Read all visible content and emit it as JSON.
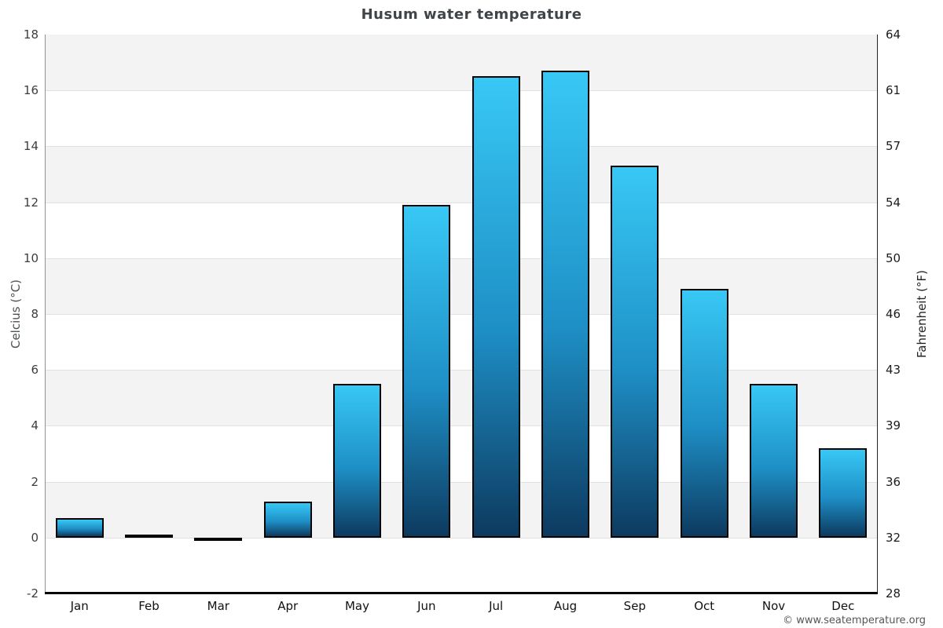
{
  "title": "Husum water temperature",
  "watermark": "© www.seatemperature.org",
  "chart_data": {
    "type": "bar",
    "title": "Husum water temperature",
    "categories": [
      "Jan",
      "Feb",
      "Mar",
      "Apr",
      "May",
      "Jun",
      "Jul",
      "Aug",
      "Sep",
      "Oct",
      "Nov",
      "Dec"
    ],
    "values": [
      0.7,
      0.1,
      -0.1,
      1.3,
      5.5,
      11.9,
      16.5,
      16.7,
      13.3,
      8.9,
      5.5,
      3.2
    ],
    "xlabel": "",
    "ylabel_left": "Celcius (°C)",
    "ylabel_right": "Fahrenheit (°F)",
    "ylim_celsius": [
      -2,
      18
    ],
    "ytick_step_celsius": 2,
    "yticks_celsius": [
      18,
      16,
      14,
      12,
      10,
      8,
      6,
      4,
      2,
      0,
      -2
    ],
    "yticks_fahrenheit": [
      64,
      61,
      57,
      54,
      50,
      46,
      43,
      39,
      36,
      32,
      28
    ],
    "grid": "horizontal-with-alternating-bands",
    "legend": "none",
    "colors": {
      "bar_gradient_top": "#38c8f5",
      "bar_gradient_mid": "#1e8fc6",
      "bar_gradient_bottom": "#0d3a5f",
      "bar_border": "#050505",
      "band_gray": "#f3f3f3",
      "band_white": "#ffffff",
      "gridline": "#e1e1e1",
      "title_text": "#3f4448",
      "tick_text": "#3d3d3d",
      "watermark_text": "#565656"
    }
  }
}
